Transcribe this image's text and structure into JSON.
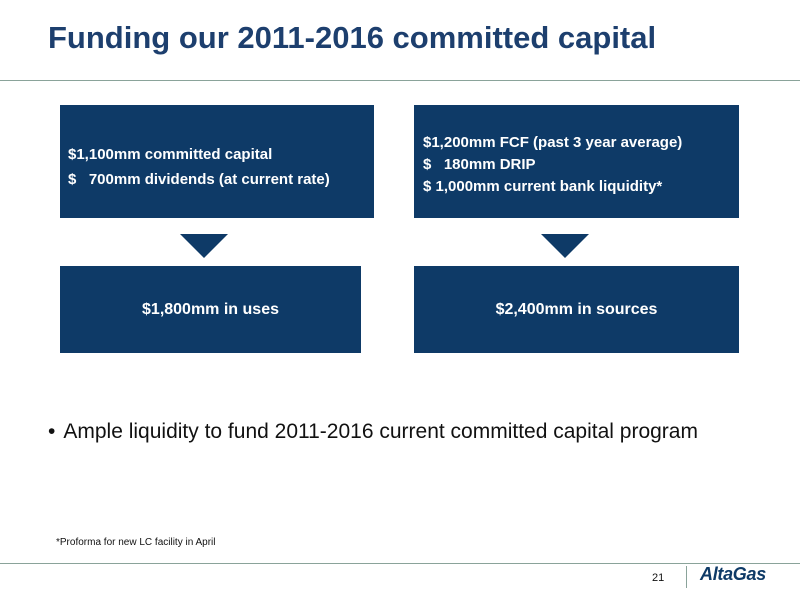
{
  "slide": {
    "title": "Funding our 2011-2016 committed capital",
    "uses_box": {
      "lines": [
        "$1,100mm committed capital",
        "$   700mm dividends (at current rate)"
      ],
      "total": "$1,800mm in uses"
    },
    "sources_box": {
      "lines": [
        "$1,200mm FCF (past 3 year average)",
        "$   180mm DRIP",
        "$ 1,000mm current bank liquidity*"
      ],
      "total": "$2,400mm in sources"
    },
    "bullet": "Ample liquidity to fund 2011-2016 current committed capital program",
    "bullet_symbol": "•",
    "footnote": "*Proforma for new LC facility in April",
    "page_number": "21",
    "logo_text": "AltaGas"
  },
  "colors": {
    "title": "#1d3f6e",
    "box": "#0e3a67",
    "rule": "#8aa39a"
  }
}
